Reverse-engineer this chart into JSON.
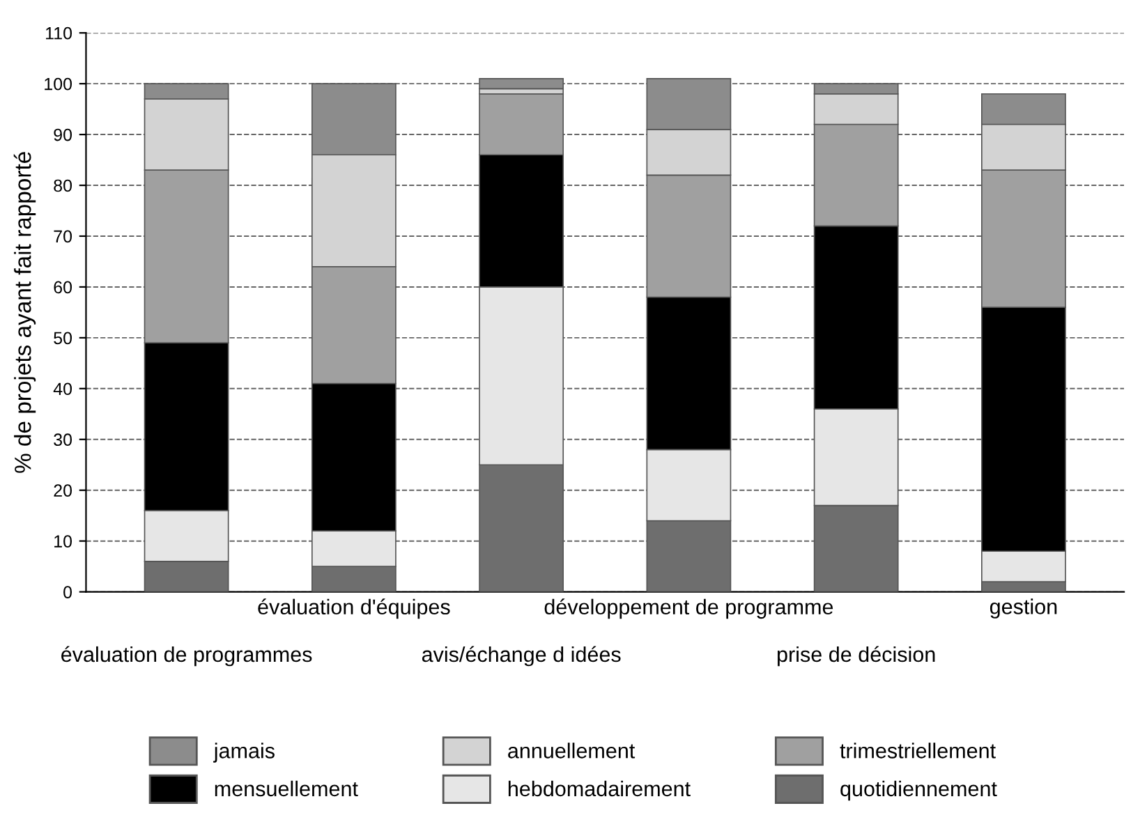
{
  "chart_data": {
    "type": "bar",
    "stacked": true,
    "ylabel": "% de projets ayant fait rapporté",
    "categories": [
      "évaluation de programmes",
      "évaluation d'équipes",
      "avis/échange d idées",
      "développement de programme",
      "prise de décision",
      "gestion"
    ],
    "series": [
      {
        "name": "quotidiennement",
        "color": "#6e6e6e",
        "values": [
          6,
          5,
          25,
          14,
          17,
          2
        ]
      },
      {
        "name": "hebdomadairement",
        "color": "#e6e6e6",
        "values": [
          10,
          7,
          35,
          14,
          19,
          6
        ]
      },
      {
        "name": "mensuellement",
        "color": "#000000",
        "values": [
          33,
          29,
          26,
          30,
          36,
          48
        ]
      },
      {
        "name": "trimestriellement",
        "color": "#a0a0a0",
        "values": [
          34,
          23,
          12,
          24,
          20,
          27
        ]
      },
      {
        "name": "annuellement",
        "color": "#d3d3d3",
        "values": [
          14,
          22,
          1,
          9,
          6,
          9
        ]
      },
      {
        "name": "jamais",
        "color": "#8c8c8c",
        "values": [
          3,
          14,
          2,
          10,
          2,
          6
        ]
      }
    ],
    "ylim": [
      0,
      110
    ],
    "yticks": [
      0,
      10,
      20,
      30,
      40,
      50,
      60,
      70,
      80,
      90,
      100,
      110
    ],
    "grid": "y",
    "legend": "bottom"
  }
}
